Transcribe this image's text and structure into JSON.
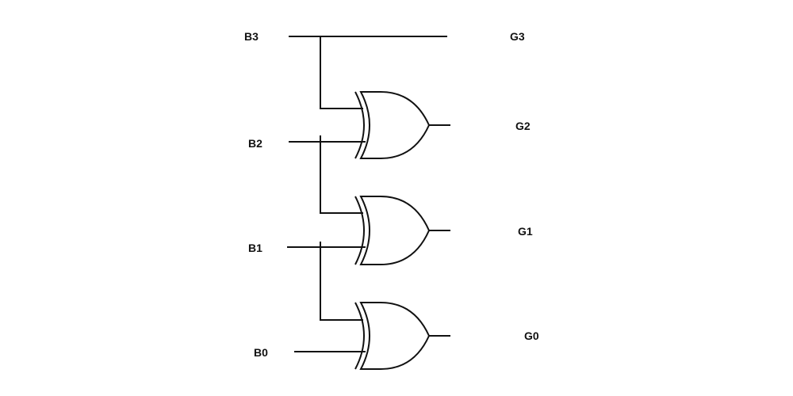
{
  "labels": {
    "b3": "B3",
    "b2": "B2",
    "b1": "B1",
    "b0": "B0",
    "g3": "G3",
    "g2": "G2",
    "g1": "G1",
    "g0": "G0"
  },
  "gates": [
    {
      "type": "XOR",
      "inputs": [
        "B3",
        "B2"
      ],
      "output": "G2"
    },
    {
      "type": "XOR",
      "inputs": [
        "B2",
        "B1"
      ],
      "output": "G1"
    },
    {
      "type": "XOR",
      "inputs": [
        "B1",
        "B0"
      ],
      "output": "G0"
    }
  ],
  "passthrough": {
    "input": "B3",
    "output": "G3"
  },
  "colors": {
    "line": "#111111",
    "background": "#ffffff"
  }
}
